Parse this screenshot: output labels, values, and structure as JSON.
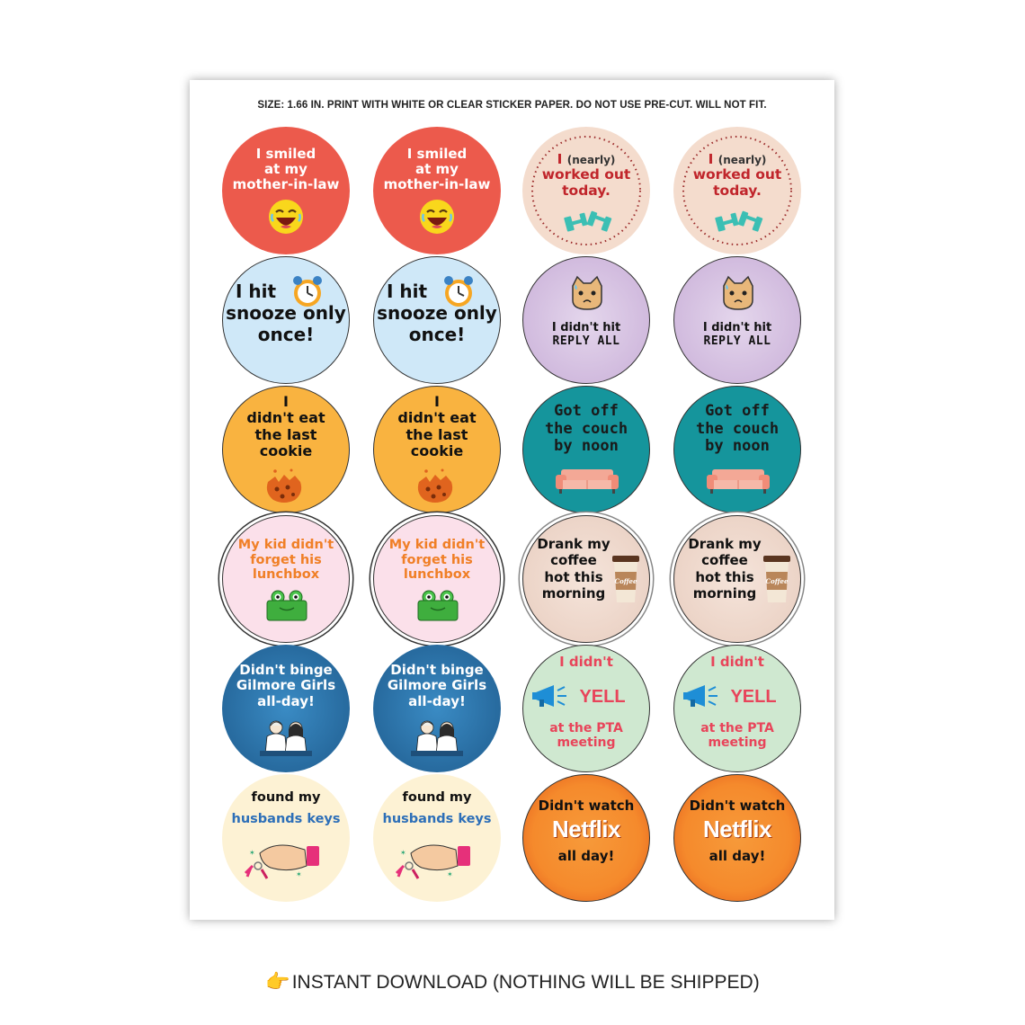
{
  "sheet": {
    "size_note": "SIZE: 1.66 IN. PRINT WITH WHITE OR CLEAR STICKER PAPER. DO NOT USE PRE-CUT. WILL NOT FIT."
  },
  "stickers": {
    "mil": {
      "lines": [
        "I smiled",
        "at my",
        "mother-in-law"
      ],
      "bg": "#ec5a4c",
      "icon": "laughing-emoji-icon"
    },
    "workout": {
      "l1a": "I ",
      "l1b": "(nearly)",
      "l2": "worked out",
      "l3": "today.",
      "bg": "#f4dccd",
      "icon": "dumbbell-icon"
    },
    "snooze": {
      "l1": "I hit",
      "l2": "snooze only",
      "l3": "once!",
      "bg": "#cfe8f8",
      "icon": "alarm-clock-icon"
    },
    "reply": {
      "l1": "I didn't hit",
      "l2": "REPLY ALL",
      "bg": "#c9afd8",
      "icon": "sweating-cat-icon"
    },
    "cookie": {
      "lines": [
        "I",
        "didn't eat",
        "the last",
        "cookie"
      ],
      "bg": "#f9b340",
      "icon": "cookie-icon"
    },
    "couch": {
      "lines": [
        "Got off",
        "the couch",
        "by noon"
      ],
      "bg": "#15959c",
      "icon": "couch-icon"
    },
    "lunch": {
      "lines": [
        "My kid didn't",
        "forget his",
        "lunchbox"
      ],
      "bg": "#fbe0ea",
      "icon": "frog-lunchbox-icon"
    },
    "coffee": {
      "lines": [
        "Drank my",
        "coffee",
        "hot this",
        "morning"
      ],
      "bg": "#f1dcd0",
      "icon": "coffee-cup-icon",
      "cup_label": "Coffee"
    },
    "gilmore": {
      "lines": [
        "Didn't binge",
        "Gilmore Girls",
        "all-day!"
      ],
      "bg": "#2a6fa3",
      "icon": "gilmore-girls-illustration-icon"
    },
    "yell": {
      "l1": "I didn't",
      "l2": "YELL",
      "l3": "at the PTA",
      "l4": "meeting",
      "bg": "#cfe8d0",
      "icon": "megaphone-icon"
    },
    "keys": {
      "l1": "found my",
      "l2": "husbands keys",
      "bg": "#fdf2d4",
      "icon": "hand-with-keys-icon"
    },
    "netflix": {
      "l1": "Didn't watch",
      "l2": "Netflix",
      "l3": "all day!",
      "bg": "#f58a2c",
      "icon": "netflix-logo-icon"
    }
  },
  "footer": {
    "icon": "pointing-hand-icon",
    "hand_glyph": "👉",
    "text": "INSTANT DOWNLOAD (NOTHING WILL BE SHIPPED)"
  }
}
